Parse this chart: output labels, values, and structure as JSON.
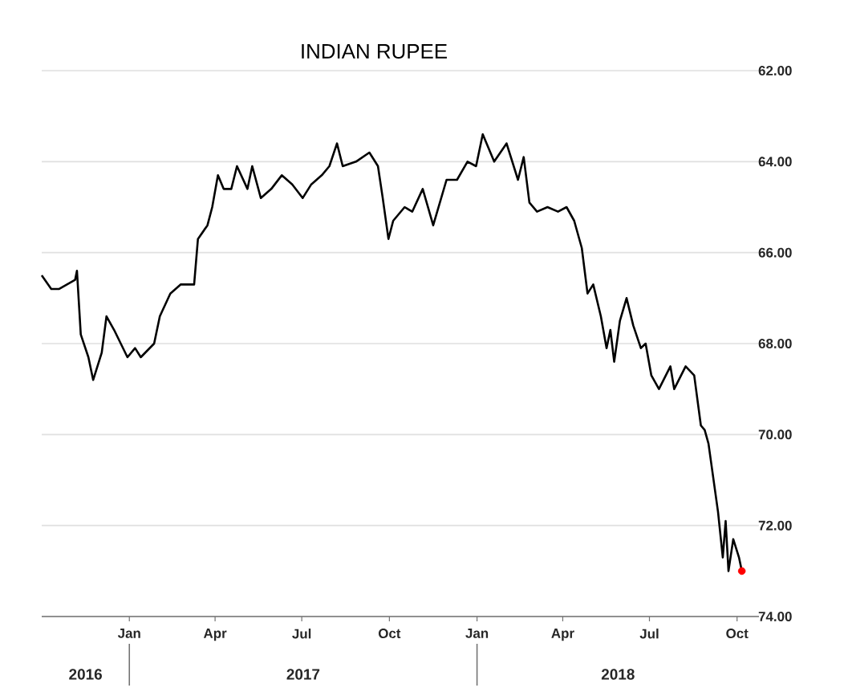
{
  "chart_data": {
    "type": "line",
    "title": "INDIAN RUPEE",
    "xlim": [
      "2016-10-01",
      "2018-10-24"
    ],
    "xticks": [
      {
        "value": "2017-01-01",
        "label": "Jan"
      },
      {
        "value": "2017-04-01",
        "label": "Apr"
      },
      {
        "value": "2017-07-01",
        "label": "Jul"
      },
      {
        "value": "2017-10-01",
        "label": "Oct"
      },
      {
        "value": "2018-01-01",
        "label": "Jan"
      },
      {
        "value": "2018-04-01",
        "label": "Apr"
      },
      {
        "value": "2018-07-01",
        "label": "Jul"
      },
      {
        "value": "2018-10-01",
        "label": "Oct"
      }
    ],
    "ylim": [
      74,
      62
    ],
    "yticks": [
      {
        "value": 62,
        "label": "62.00"
      },
      {
        "value": 64,
        "label": "64.00"
      },
      {
        "value": 66,
        "label": "66.00"
      },
      {
        "value": 68,
        "label": "68.00"
      },
      {
        "value": 70,
        "label": "70.00"
      },
      {
        "value": 72,
        "label": "72.00"
      },
      {
        "value": 74,
        "label": "74.00"
      }
    ],
    "grid": "y",
    "annotations": [
      "2016",
      "2017",
      "2018"
    ],
    "series": [
      {
        "color": "#000000",
        "marker": "none",
        "x": [
          "2016-10-01",
          "2016-10-11",
          "2016-10-19",
          "2016-11-05",
          "2016-11-07",
          "2016-11-11",
          "2016-11-19",
          "2016-11-24",
          "2016-12-03",
          "2016-12-08",
          "2016-12-16",
          "2016-12-30",
          "2017-01-07",
          "2017-01-13",
          "2017-01-27",
          "2017-02-02",
          "2017-02-13",
          "2017-02-24",
          "2017-03-10",
          "2017-03-14",
          "2017-03-24",
          "2017-03-29",
          "2017-04-04",
          "2017-04-10",
          "2017-04-18",
          "2017-04-24",
          "2017-05-05",
          "2017-05-10",
          "2017-05-19",
          "2017-05-30",
          "2017-06-10",
          "2017-06-21",
          "2017-07-02",
          "2017-07-11",
          "2017-07-22",
          "2017-07-30",
          "2017-08-07",
          "2017-08-13",
          "2017-08-27",
          "2017-09-10",
          "2017-09-19",
          "2017-09-24",
          "2017-09-30",
          "2017-10-05",
          "2017-10-17",
          "2017-10-25",
          "2017-11-05",
          "2017-11-16",
          "2017-11-30",
          "2017-12-11",
          "2017-12-22",
          "2017-12-31",
          "2018-01-07",
          "2018-01-19",
          "2018-02-01",
          "2018-02-13",
          "2018-02-19",
          "2018-02-25",
          "2018-03-05",
          "2018-03-16",
          "2018-03-27",
          "2018-04-05",
          "2018-04-13",
          "2018-04-21",
          "2018-04-27",
          "2018-05-03",
          "2018-05-11",
          "2018-05-17",
          "2018-05-21",
          "2018-05-25",
          "2018-05-31",
          "2018-06-07",
          "2018-06-14",
          "2018-06-22",
          "2018-06-27",
          "2018-07-03",
          "2018-07-11",
          "2018-07-23",
          "2018-07-27",
          "2018-08-08",
          "2018-08-17",
          "2018-08-24",
          "2018-08-28",
          "2018-09-01",
          "2018-09-11",
          "2018-09-16",
          "2018-09-19",
          "2018-09-22",
          "2018-09-27",
          "2018-10-03",
          "2018-10-06"
        ],
        "values": [
          66.5,
          66.8,
          66.8,
          66.6,
          66.4,
          67.8,
          68.3,
          68.8,
          68.2,
          67.4,
          67.7,
          68.3,
          68.1,
          68.3,
          68.0,
          67.4,
          66.9,
          66.7,
          66.7,
          65.7,
          65.4,
          65.0,
          64.3,
          64.6,
          64.6,
          64.1,
          64.6,
          64.1,
          64.8,
          64.6,
          64.3,
          64.5,
          64.8,
          64.5,
          64.3,
          64.1,
          63.6,
          64.1,
          64.0,
          63.8,
          64.1,
          64.8,
          65.7,
          65.3,
          65.0,
          65.1,
          64.6,
          65.4,
          64.4,
          64.4,
          64.0,
          64.1,
          63.4,
          64.0,
          63.6,
          64.4,
          63.9,
          64.9,
          65.1,
          65.0,
          65.1,
          65.0,
          65.3,
          65.9,
          66.9,
          66.7,
          67.4,
          68.1,
          67.7,
          68.4,
          67.5,
          67.0,
          67.6,
          68.1,
          68.0,
          68.7,
          69.0,
          68.5,
          69.0,
          68.5,
          68.7,
          69.8,
          69.9,
          70.2,
          71.7,
          72.7,
          71.9,
          73.0,
          72.3,
          72.7,
          73.0
        ]
      },
      {
        "type": "scatter",
        "color": "#ff0000",
        "marker": "circle",
        "x": [
          "2018-10-06"
        ],
        "values": [
          73.0
        ]
      }
    ]
  }
}
